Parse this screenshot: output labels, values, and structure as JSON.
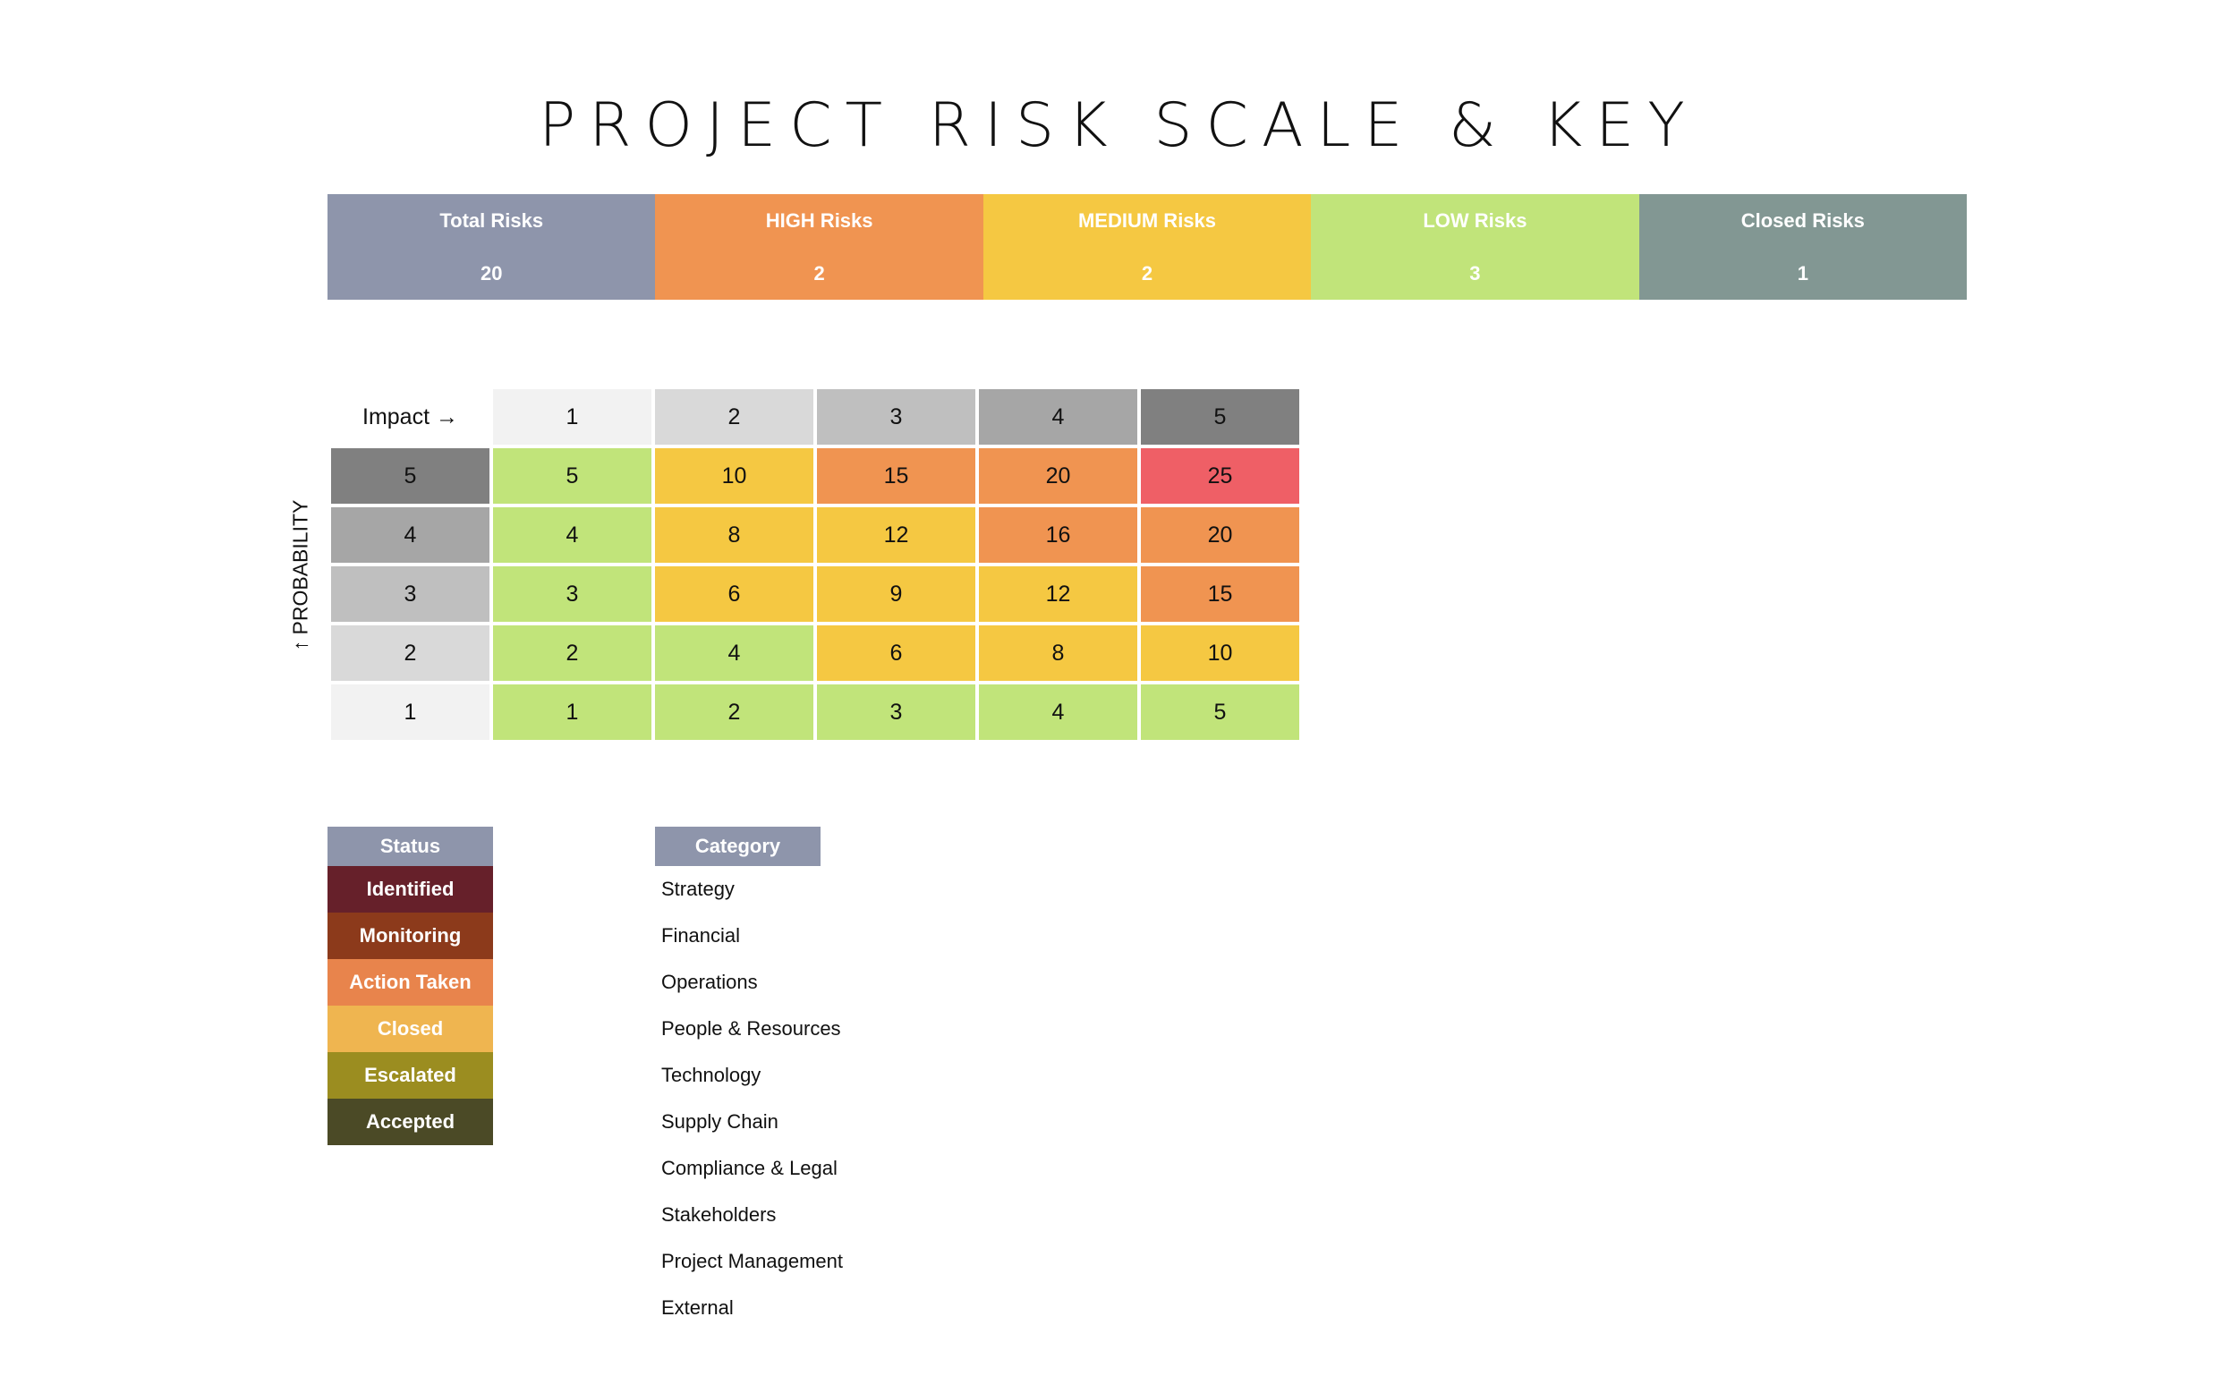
{
  "title": "PROJECT RISK SCALE & KEY",
  "summary": [
    {
      "label": "Total Risks",
      "value": "20",
      "color": "#8e95ab"
    },
    {
      "label": "HIGH Risks",
      "value": "2",
      "color": "#f09451"
    },
    {
      "label": "MEDIUM Risks",
      "value": "2",
      "color": "#f5c842"
    },
    {
      "label": "LOW Risks",
      "value": "3",
      "color": "#c1e47a"
    },
    {
      "label": "Closed Risks",
      "value": "1",
      "color": "#829793"
    }
  ],
  "matrix": {
    "impact_label": "Impact →",
    "probability_label": "↑ PROBABILITY",
    "impact_headers": [
      {
        "value": "1",
        "color": "#f2f2f2"
      },
      {
        "value": "2",
        "color": "#d9d9d9"
      },
      {
        "value": "3",
        "color": "#bfbfbf"
      },
      {
        "value": "4",
        "color": "#a6a6a6"
      },
      {
        "value": "5",
        "color": "#808080"
      }
    ],
    "rows": [
      {
        "probability": "5",
        "probability_color": "#808080",
        "cells": [
          {
            "value": "5",
            "color": "#c1e47a"
          },
          {
            "value": "10",
            "color": "#f5c842"
          },
          {
            "value": "15",
            "color": "#f09451"
          },
          {
            "value": "20",
            "color": "#f09451"
          },
          {
            "value": "25",
            "color": "#ef5f66"
          }
        ]
      },
      {
        "probability": "4",
        "probability_color": "#a6a6a6",
        "cells": [
          {
            "value": "4",
            "color": "#c1e47a"
          },
          {
            "value": "8",
            "color": "#f5c842"
          },
          {
            "value": "12",
            "color": "#f5c842"
          },
          {
            "value": "16",
            "color": "#f09451"
          },
          {
            "value": "20",
            "color": "#f09451"
          }
        ]
      },
      {
        "probability": "3",
        "probability_color": "#bfbfbf",
        "cells": [
          {
            "value": "3",
            "color": "#c1e47a"
          },
          {
            "value": "6",
            "color": "#f5c842"
          },
          {
            "value": "9",
            "color": "#f5c842"
          },
          {
            "value": "12",
            "color": "#f5c842"
          },
          {
            "value": "15",
            "color": "#f09451"
          }
        ]
      },
      {
        "probability": "2",
        "probability_color": "#d9d9d9",
        "cells": [
          {
            "value": "2",
            "color": "#c1e47a"
          },
          {
            "value": "4",
            "color": "#c1e47a"
          },
          {
            "value": "6",
            "color": "#f5c842"
          },
          {
            "value": "8",
            "color": "#f5c842"
          },
          {
            "value": "10",
            "color": "#f5c842"
          }
        ]
      },
      {
        "probability": "1",
        "probability_color": "#f2f2f2",
        "cells": [
          {
            "value": "1",
            "color": "#c1e47a"
          },
          {
            "value": "2",
            "color": "#c1e47a"
          },
          {
            "value": "3",
            "color": "#c1e47a"
          },
          {
            "value": "4",
            "color": "#c1e47a"
          },
          {
            "value": "5",
            "color": "#c1e47a"
          }
        ]
      }
    ]
  },
  "status": {
    "header": "Status",
    "items": [
      {
        "label": "Identified",
        "color": "#66202a"
      },
      {
        "label": "Monitoring",
        "color": "#8c3a1b"
      },
      {
        "label": "Action Taken",
        "color": "#e8844c"
      },
      {
        "label": "Closed",
        "color": "#efb550"
      },
      {
        "label": "Escalated",
        "color": "#9b8d20"
      },
      {
        "label": "Accepted",
        "color": "#4b4a26"
      }
    ]
  },
  "category": {
    "header": "Category",
    "items": [
      "Strategy",
      "Financial",
      "Operations",
      "People & Resources",
      "Technology",
      "Supply Chain",
      "Compliance & Legal",
      "Stakeholders",
      "Project Management",
      "External"
    ]
  }
}
